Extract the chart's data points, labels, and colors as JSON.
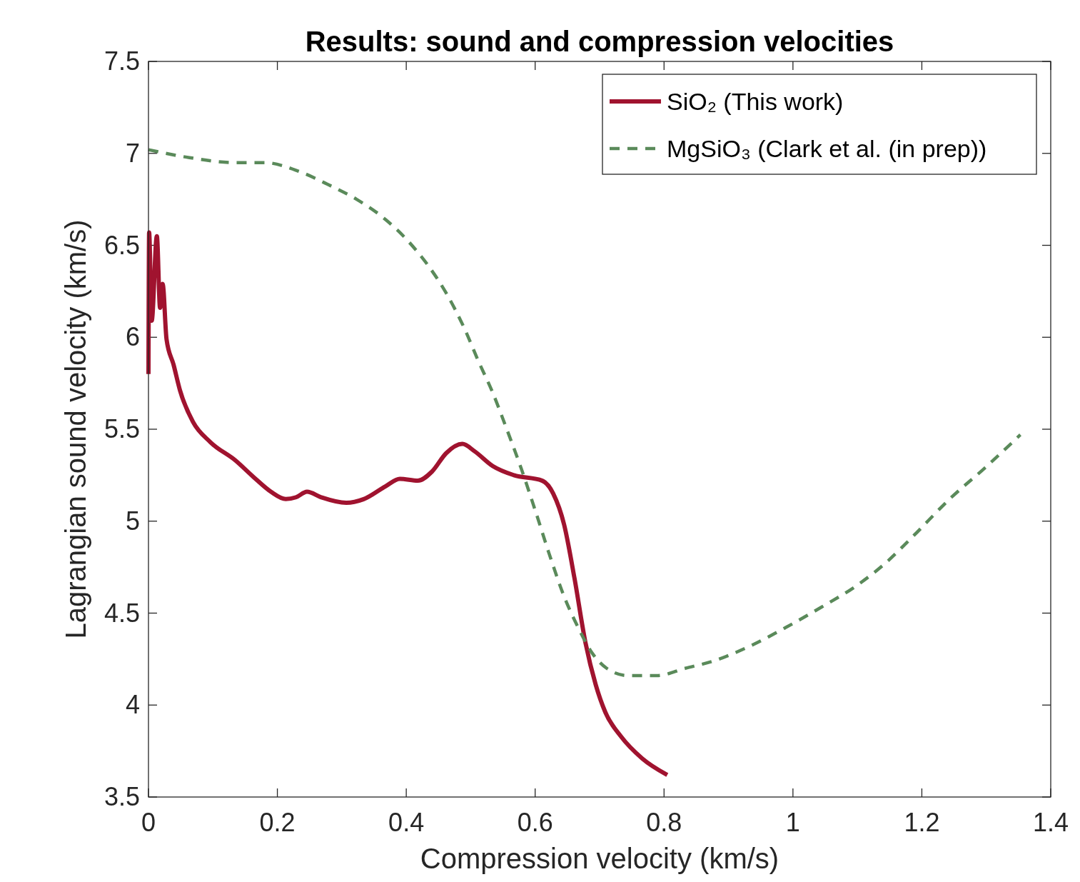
{
  "chart_data": {
    "type": "line",
    "title": "Results: sound and compression velocities",
    "xlabel": "Compression velocity (km/s)",
    "ylabel": "Lagrangian sound velocity (km/s)",
    "xlim": [
      0,
      1.4
    ],
    "xticks": [
      0,
      0.2,
      0.4,
      0.6,
      0.8,
      1,
      1.2,
      1.4
    ],
    "ylim": [
      3.5,
      7.5
    ],
    "yticks": [
      3.5,
      4,
      4.5,
      5,
      5.5,
      6,
      6.5,
      7,
      7.5
    ],
    "legend": "top right",
    "series": [
      {
        "name": "SiO₂ (This work)",
        "color": "#a0132f",
        "line_style": "solid",
        "x": [
          0,
          0.001,
          0.005,
          0.013,
          0.018,
          0.022,
          0.028,
          0.039,
          0.049,
          0.069,
          0.096,
          0.135,
          0.163,
          0.19,
          0.213,
          0.229,
          0.246,
          0.268,
          0.307,
          0.334,
          0.368,
          0.39,
          0.418,
          0.44,
          0.462,
          0.487,
          0.506,
          0.534,
          0.567,
          0.611,
          0.628,
          0.645,
          0.661,
          0.678,
          0.694,
          0.709,
          0.733,
          0.766,
          0.805
        ],
        "values": [
          5.8,
          6.57,
          6.09,
          6.55,
          6.16,
          6.29,
          5.99,
          5.85,
          5.71,
          5.54,
          5.43,
          5.33,
          5.24,
          5.16,
          5.12,
          5.13,
          5.16,
          5.13,
          5.1,
          5.12,
          5.19,
          5.23,
          5.22,
          5.27,
          5.37,
          5.42,
          5.38,
          5.3,
          5.25,
          5.22,
          5.15,
          4.98,
          4.69,
          4.34,
          4.11,
          3.96,
          3.83,
          3.71,
          3.62
        ]
      },
      {
        "name": "MgSiO₃ (Clark et al. (in prep))",
        "color": "#5a8a5a",
        "line_style": "dashed",
        "x": [
          0,
          0.058,
          0.135,
          0.179,
          0.235,
          0.279,
          0.323,
          0.368,
          0.401,
          0.434,
          0.462,
          0.49,
          0.512,
          0.534,
          0.556,
          0.578,
          0.6,
          0.622,
          0.645,
          0.667,
          0.689,
          0.711,
          0.744,
          0.789,
          0.833,
          0.877,
          0.933,
          0.988,
          1.043,
          1.099,
          1.143,
          1.187,
          1.243,
          1.298,
          1.353
        ],
        "values": [
          7.02,
          6.98,
          6.95,
          6.95,
          6.9,
          6.83,
          6.75,
          6.64,
          6.53,
          6.39,
          6.24,
          6.05,
          5.87,
          5.7,
          5.5,
          5.29,
          5.06,
          4.82,
          4.59,
          4.42,
          4.28,
          4.2,
          4.16,
          4.16,
          4.2,
          4.24,
          4.32,
          4.42,
          4.53,
          4.65,
          4.77,
          4.92,
          5.12,
          5.29,
          5.47
        ]
      }
    ]
  }
}
